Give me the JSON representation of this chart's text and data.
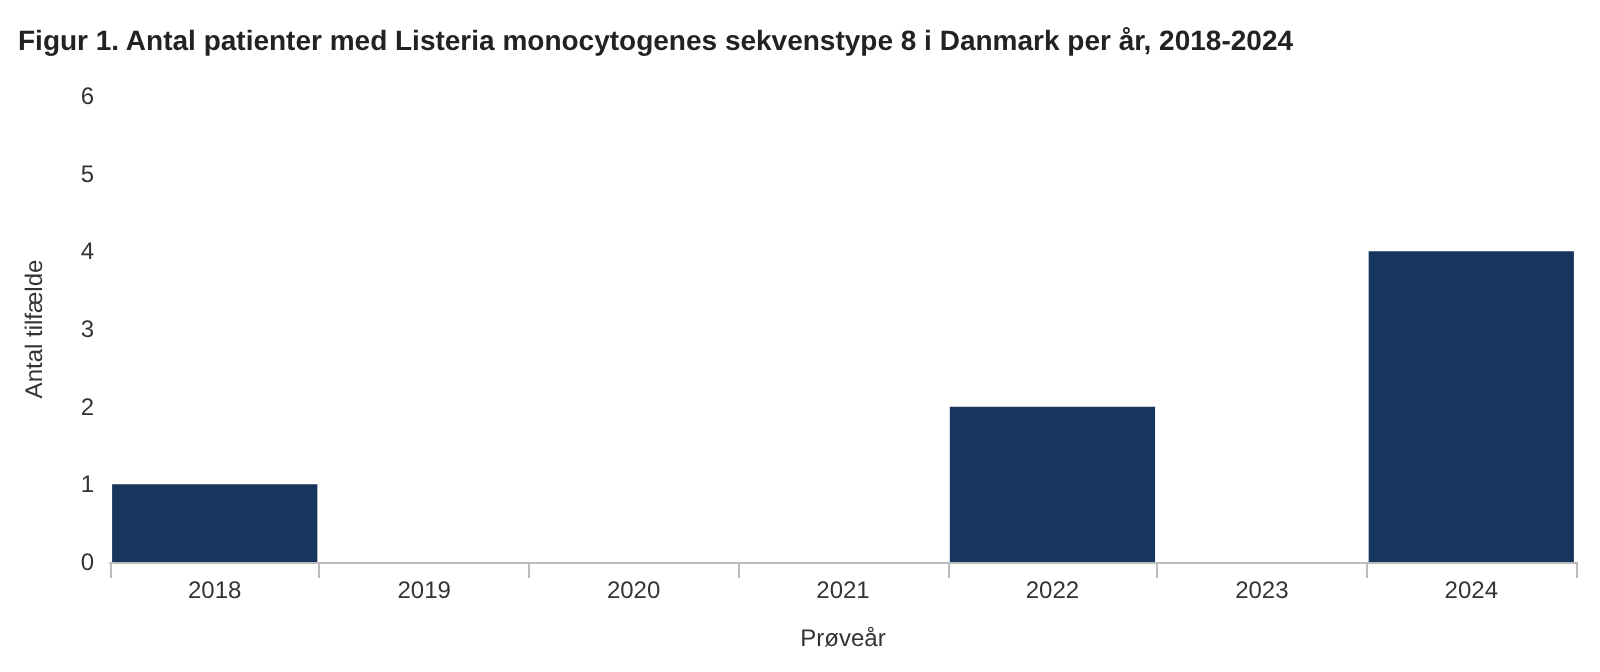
{
  "chart_data": {
    "type": "bar",
    "title": "Figur 1. Antal patienter med Listeria monocytogenes sekvenstype 8 i Danmark per år, 2018-2024",
    "xlabel": "Prøveår",
    "ylabel": "Antal tilfælde",
    "categories": [
      "2018",
      "2019",
      "2020",
      "2021",
      "2022",
      "2023",
      "2024"
    ],
    "values": [
      1,
      0,
      0,
      0,
      2,
      0,
      4
    ],
    "color": "#17365d",
    "ylim": [
      0,
      6
    ],
    "yticks": [
      0,
      1,
      2,
      3,
      4,
      5,
      6
    ],
    "grid": false
  }
}
